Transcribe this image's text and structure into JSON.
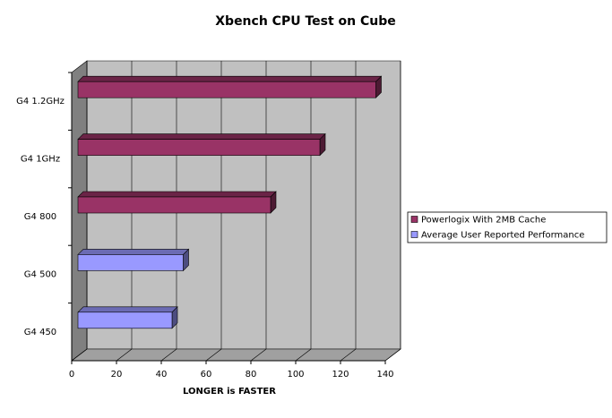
{
  "chart_data": {
    "type": "bar",
    "orientation": "horizontal",
    "title": "Xbench CPU Test on Cube",
    "x_label": "LONGER is FASTER",
    "categories": [
      "G4 1.2GHz",
      "G4 1GHz",
      "G4 800",
      "G4 500",
      "G4 450"
    ],
    "series": [
      {
        "name": "Powerlogix With 2MB Cache",
        "color": "#993366",
        "values": [
          133,
          108,
          86,
          null,
          null
        ]
      },
      {
        "name": "Average User Reported Performance",
        "color": "#9999ff",
        "values": [
          null,
          null,
          null,
          47,
          42
        ]
      }
    ],
    "xlim": [
      0,
      140
    ],
    "xticks": [
      0,
      20,
      40,
      60,
      80,
      100,
      120,
      140
    ],
    "grid": true,
    "legend": "right"
  }
}
